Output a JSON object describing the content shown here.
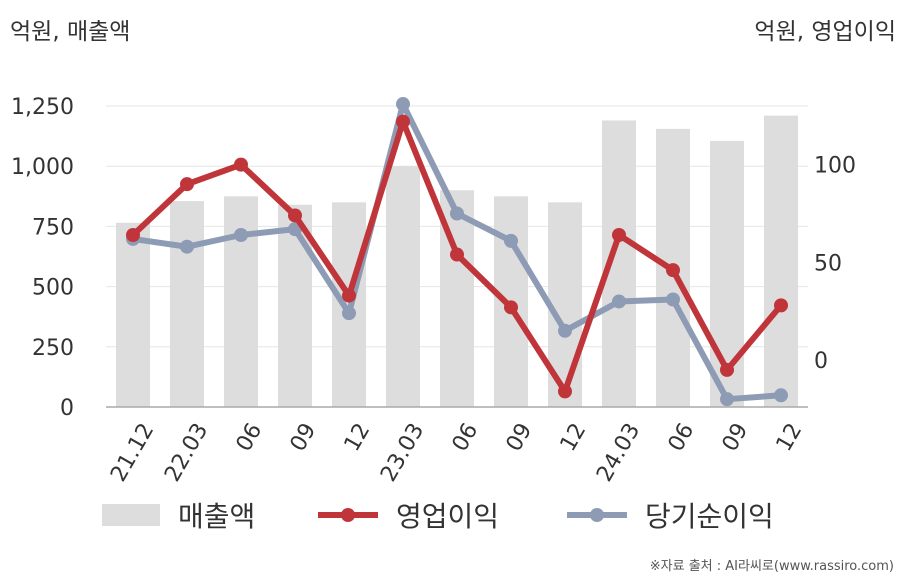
{
  "left_unit": "억원, 매출액",
  "right_unit": "억원, 영업이익",
  "source": "※자료 출처 : AI라씨로(www.rassiro.com)",
  "legend": {
    "revenue": "매출액",
    "operating": "영업이익",
    "net": "당기순이익"
  },
  "chart_data": {
    "type": "bar+line",
    "categories": [
      "21.12",
      "22.03",
      "06",
      "09",
      "12",
      "23.03",
      "06",
      "09",
      "12",
      "24.03",
      "06",
      "09",
      "12"
    ],
    "left_axis": {
      "ticks": [
        "0",
        "250",
        "500",
        "750",
        "1,000",
        "1,250"
      ],
      "tick_values": [
        0,
        250,
        500,
        750,
        1000,
        1250
      ],
      "ylim": [
        0,
        1250
      ]
    },
    "right_axis": {
      "ticks": [
        "0",
        "50",
        "100"
      ],
      "tick_values": [
        0,
        50,
        100
      ],
      "ylim": [
        -24,
        130
      ]
    },
    "series": [
      {
        "name": "매출액",
        "type": "bar",
        "axis": "left",
        "color": "#dddddd",
        "values": [
          765,
          855,
          875,
          840,
          850,
          1000,
          900,
          875,
          850,
          1190,
          1155,
          1105,
          1210
        ]
      },
      {
        "name": "영업이익",
        "type": "line",
        "axis": "right",
        "color": "#c0353a",
        "values": [
          64,
          90,
          100,
          74,
          33,
          122,
          54,
          27,
          -16,
          64,
          46,
          -5,
          28
        ]
      },
      {
        "name": "당기순이익",
        "type": "line",
        "axis": "right",
        "color": "#8e9bb5",
        "values": [
          62,
          58,
          64,
          67,
          24,
          131,
          75,
          61,
          15,
          30,
          31,
          -20,
          -18
        ]
      }
    ],
    "grid": true
  }
}
